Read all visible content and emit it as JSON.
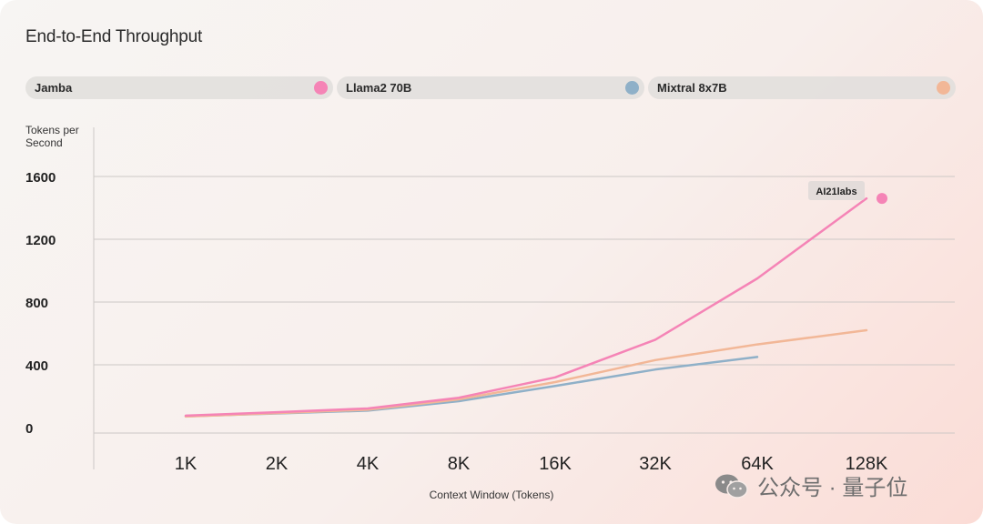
{
  "chart_data": {
    "type": "line",
    "title": "End-to-End Throughput",
    "ylabel": "Tokens per Second",
    "xlabel": "Context Window (Tokens)",
    "categories": [
      "1K",
      "2K",
      "4K",
      "8K",
      "16K",
      "32K",
      "64K",
      "128K"
    ],
    "yticks": [
      0,
      400,
      800,
      1200,
      1600
    ],
    "ylim": [
      0,
      1600
    ],
    "grid": true,
    "legend_position": "top",
    "series": [
      {
        "name": "Jamba",
        "color": "#f584b6",
        "points": [
          [
            0,
            76
          ],
          [
            1,
            98
          ],
          [
            2,
            122
          ],
          [
            3,
            190
          ],
          [
            4,
            320
          ],
          [
            5,
            560
          ],
          [
            6,
            950
          ],
          [
            7,
            1460
          ]
        ]
      },
      {
        "name": "Llama2 70B",
        "color": "#8fb0c8",
        "points": [
          [
            0,
            72
          ],
          [
            1,
            90
          ],
          [
            2,
            108
          ],
          [
            3,
            168
          ],
          [
            4,
            265
          ],
          [
            5,
            370
          ],
          [
            6,
            450
          ]
        ]
      },
      {
        "name": "Mixtral 8x7B",
        "color": "#f2b797",
        "points": [
          [
            0,
            70
          ],
          [
            1,
            92
          ],
          [
            2,
            114
          ],
          [
            3,
            180
          ],
          [
            4,
            290
          ],
          [
            5,
            430
          ],
          [
            6,
            530
          ],
          [
            7,
            620
          ]
        ]
      }
    ],
    "annotation": {
      "text": "AI21labs",
      "series": "Jamba"
    }
  },
  "watermark": {
    "text": "公众号 · 量子位",
    "icon": "wechat-icon"
  }
}
